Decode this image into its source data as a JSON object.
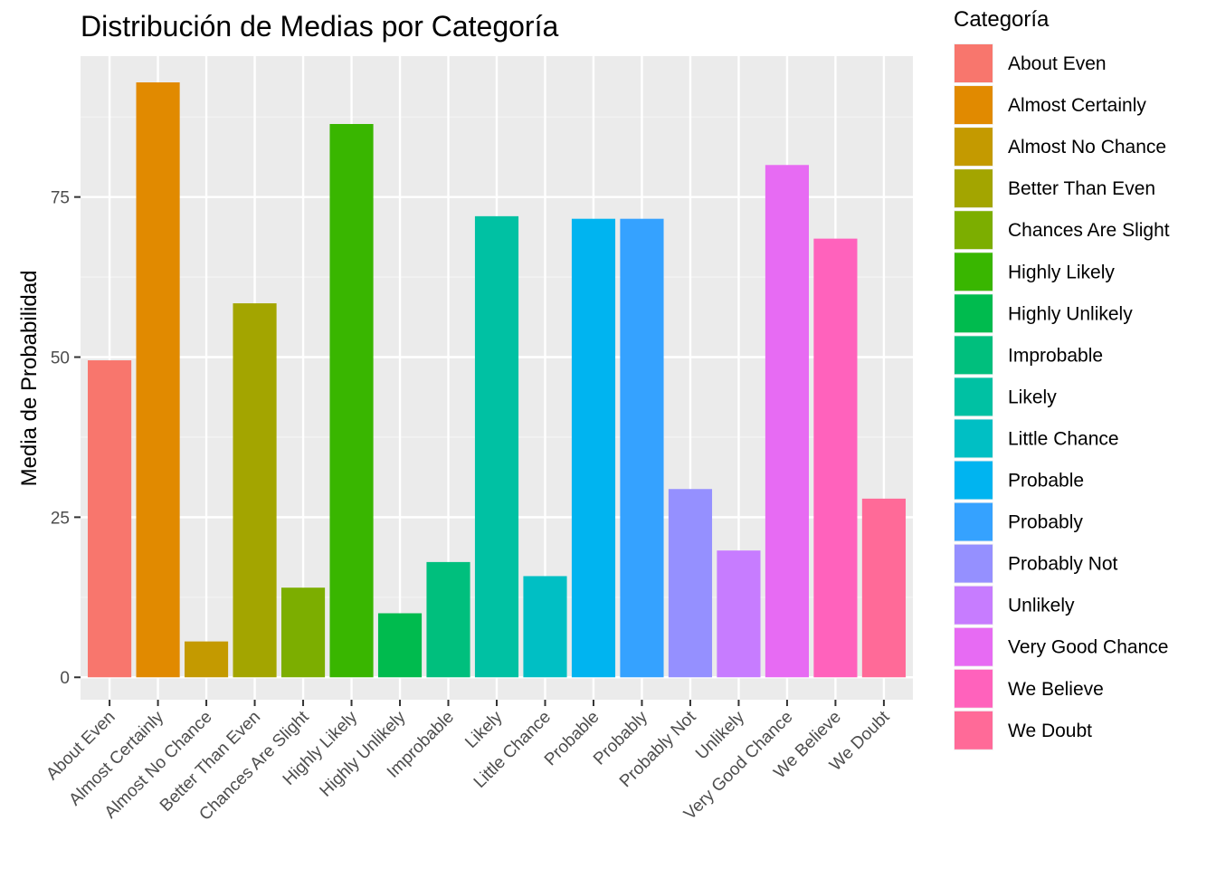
{
  "chart_data": {
    "type": "bar",
    "title": "Distribución de Medias por Categoría",
    "xlabel": "",
    "ylabel": "Media de Probabilidad",
    "ylim": [
      -3.5,
      97
    ],
    "yticks": [
      0,
      25,
      50,
      75
    ],
    "grid": true,
    "legend_title": "Categoría",
    "legend_position": "right",
    "categories": [
      "About Even",
      "Almost Certainly",
      "Almost No Chance",
      "Better Than Even",
      "Chances Are Slight",
      "Highly Likely",
      "Highly Unlikely",
      "Improbable",
      "Likely",
      "Little Chance",
      "Probable",
      "Probably",
      "Probably Not",
      "Unlikely",
      "Very Good Chance",
      "We Believe",
      "We Doubt"
    ],
    "values": [
      49.5,
      92.9,
      5.6,
      58.4,
      14.0,
      86.4,
      10.0,
      18.0,
      72.0,
      15.8,
      71.6,
      71.6,
      29.4,
      19.8,
      80.0,
      68.5,
      27.9
    ],
    "colors": [
      "#F8766D",
      "#E18A00",
      "#BE9C00",
      "#8CAB00",
      "#24B700",
      "#00BE70",
      "#00C1AB",
      "#00BBDA",
      "#00ACFC",
      "#8B93FF",
      "#D575FE",
      "#F962DD",
      "#FF65AC",
      "#ED813E",
      "#C49A00",
      "#7CAE00",
      "#00BA38"
    ],
    "bar_colors": [
      "#F8766D",
      "#E18A00",
      "#C49A00",
      "#A3A500",
      "#7CAE00",
      "#39B600",
      "#00BB4E",
      "#00BF7D",
      "#00C1A3",
      "#00BFC4",
      "#00B4F0",
      "#35A2FF",
      "#9590FF",
      "#C77CFF",
      "#E76BF3",
      "#FF62BC",
      "#FF6A98"
    ]
  }
}
